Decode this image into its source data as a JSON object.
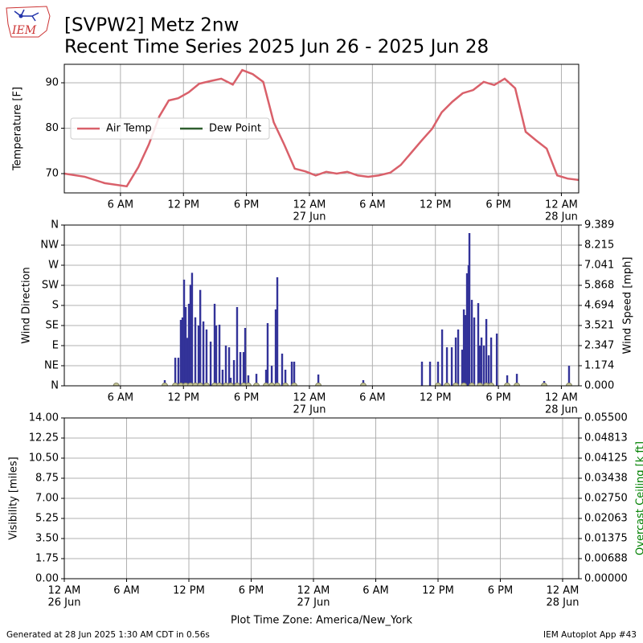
{
  "header": {
    "title": "[SVPW2] Metz 2nw",
    "subtitle": "Recent Time Series 2025 Jun 26 - 2025 Jun 28",
    "logo_text": "IEM"
  },
  "footer": {
    "left": "Generated at 28 Jun 2025 1:30 AM CDT in 0.56s",
    "right": "IEM Autoplot App #43"
  },
  "chart_data": [
    {
      "type": "line",
      "ylabel": "Temperature [F]",
      "grid": true,
      "legend": "center left",
      "xlim": [
        0.65,
        49.65
      ],
      "ylim": [
        65.75,
        94.07
      ],
      "yticks": [
        70,
        80,
        90
      ],
      "xticks": [
        {
          "value": 6,
          "label": "6 AM"
        },
        {
          "value": 12,
          "label": "12 PM"
        },
        {
          "value": 18,
          "label": "6 PM"
        },
        {
          "value": 24,
          "label": "12 AM",
          "sublabel": "27 Jun"
        },
        {
          "value": 30,
          "label": "6 AM"
        },
        {
          "value": 36,
          "label": "12 PM"
        },
        {
          "value": 42,
          "label": "6 PM"
        },
        {
          "value": 48,
          "label": "12 AM",
          "sublabel": "28 Jun"
        }
      ],
      "series": [
        {
          "name": "Air Temp",
          "type": "line",
          "color": "#d9606a",
          "x": [
            0.65,
            2.6,
            4.5,
            6.6,
            7.7,
            8.7,
            9.7,
            10.6,
            11.5,
            12.5,
            13.5,
            14.6,
            15.6,
            16.7,
            17.6,
            18.6,
            19.6,
            20.6,
            21.6,
            22.6,
            23.6,
            24.6,
            25.6,
            26.6,
            27.6,
            28.6,
            29.6,
            30.6,
            31.7,
            32.7,
            33.7,
            34.7,
            35.7,
            36.6,
            37.6,
            38.6,
            39.6,
            40.6,
            41.6,
            42.6,
            43.6,
            44.6,
            45.6,
            46.6,
            47.6,
            48.6,
            49.65
          ],
          "values": [
            70,
            69.3,
            67.9,
            67.2,
            71.4,
            76.4,
            82.6,
            86.1,
            86.6,
            87.9,
            89.8,
            90.4,
            90.9,
            89.6,
            92.8,
            91.9,
            90.2,
            81.3,
            76.4,
            71.1,
            70.5,
            69.6,
            70.4,
            70,
            70.4,
            69.6,
            69.3,
            69.6,
            70.2,
            71.9,
            74.6,
            77.3,
            79.9,
            83.5,
            85.8,
            87.7,
            88.4,
            90.2,
            89.5,
            90.9,
            88.8,
            79.2,
            77.3,
            75.5,
            69.6,
            68.9,
            68.6
          ]
        },
        {
          "name": "Dew Point",
          "type": "line",
          "color": "#2e5e2e",
          "x": [],
          "values": []
        }
      ]
    },
    {
      "type": "bar",
      "ylabel": "Wind Direction",
      "y2label": "Wind Speed [mph]",
      "grid": true,
      "xlim": [
        0.65,
        49.65
      ],
      "ylim": [
        0,
        360
      ],
      "yticks": [
        {
          "value": 0,
          "label": "N"
        },
        {
          "value": 45,
          "label": "NE"
        },
        {
          "value": 90,
          "label": "E"
        },
        {
          "value": 135,
          "label": "SE"
        },
        {
          "value": 180,
          "label": "S"
        },
        {
          "value": 225,
          "label": "SW"
        },
        {
          "value": 270,
          "label": "W"
        },
        {
          "value": 315,
          "label": "NW"
        },
        {
          "value": 360,
          "label": "N"
        }
      ],
      "y2lim": [
        0,
        9.389
      ],
      "y2ticks": [
        {
          "value": 0,
          "label": "0.000"
        },
        {
          "value": 1.174,
          "label": "1.174"
        },
        {
          "value": 2.347,
          "label": "2.347"
        },
        {
          "value": 3.521,
          "label": "3.521"
        },
        {
          "value": 4.694,
          "label": "4.694"
        },
        {
          "value": 5.868,
          "label": "5.868"
        },
        {
          "value": 7.041,
          "label": "7.041"
        },
        {
          "value": 8.215,
          "label": "8.215"
        },
        {
          "value": 9.389,
          "label": "9.389"
        }
      ],
      "xticks": [
        {
          "value": 6,
          "label": "6 AM"
        },
        {
          "value": 12,
          "label": "12 PM"
        },
        {
          "value": 18,
          "label": "6 PM"
        },
        {
          "value": 24,
          "label": "12 AM",
          "sublabel": "27 Jun"
        },
        {
          "value": 30,
          "label": "6 AM"
        },
        {
          "value": 36,
          "label": "12 PM"
        },
        {
          "value": 42,
          "label": "6 PM"
        },
        {
          "value": 48,
          "label": "12 AM",
          "sublabel": "28 Jun"
        }
      ],
      "series": [
        {
          "type": "bar",
          "axis": "y2",
          "color": "#333399",
          "x": [
            10.22,
            11.22,
            11.52,
            11.75,
            11.91,
            12.06,
            12.21,
            12.36,
            12.52,
            12.67,
            12.82,
            13.13,
            13.44,
            13.6,
            13.9,
            14.2,
            14.59,
            14.97,
            15.12,
            15.43,
            15.73,
            16.04,
            16.35,
            16.5,
            16.81,
            17.11,
            17.42,
            17.73,
            17.88,
            18.18,
            18.95,
            19.87,
            20.02,
            20.41,
            20.79,
            20.94,
            21.4,
            21.71,
            22.32,
            22.55,
            24.85,
            29.13,
            34.72,
            35.49,
            36.25,
            36.64,
            37.1,
            37.56,
            37.94,
            38.17,
            38.55,
            38.71,
            38.86,
            39.01,
            39.16,
            39.24,
            39.47,
            39.7,
            40.08,
            40.24,
            40.39,
            40.62,
            40.85,
            41.08,
            41.31,
            41.85,
            42.84,
            43.76,
            46.36,
            48.73
          ],
          "values": [
            0.33,
            1.64,
            1.64,
            3.85,
            3.99,
            6.2,
            4.6,
            2.8,
            4.79,
            5.9,
            6.6,
            4.0,
            3.52,
            5.6,
            3.76,
            3.29,
            2.58,
            4.79,
            3.52,
            3.57,
            0.94,
            2.35,
            2.25,
            0.47,
            1.5,
            4.6,
            1.97,
            1.97,
            3.38,
            0.61,
            0.7,
            0.94,
            3.66,
            1.17,
            4.46,
            6.34,
            1.88,
            0.94,
            1.41,
            1.41,
            0.66,
            0.33,
            1.41,
            1.41,
            1.41,
            3.29,
            2.25,
            2.25,
            2.82,
            3.29,
            2.11,
            4.46,
            4.13,
            6.57,
            7.04,
            8.92,
            5.02,
            3.99,
            4.83,
            2.35,
            2.82,
            2.35,
            3.9,
            1.78,
            2.82,
            3.05,
            0.61,
            0.7,
            0.28,
            1.17
          ]
        },
        {
          "type": "scatter",
          "color": "#c8c89a",
          "x": [
            5.6,
            10.22,
            11.22,
            11.75,
            12.21,
            12.67,
            13.13,
            13.6,
            14.2,
            14.97,
            15.43,
            16.04,
            16.5,
            17.11,
            17.73,
            18.18,
            18.95,
            19.87,
            20.41,
            20.94,
            21.71,
            22.55,
            24.85,
            29.13,
            36.25,
            37.1,
            37.94,
            38.71,
            39.47,
            40.24,
            40.85,
            41.31,
            42.84,
            43.76,
            46.36,
            48.73
          ],
          "values": [
            0,
            0,
            0,
            0,
            0,
            0,
            0,
            0,
            0,
            0,
            0,
            0,
            0,
            0,
            0,
            0,
            0,
            0,
            0,
            0,
            0,
            0,
            0,
            0,
            0,
            0,
            0,
            0,
            0,
            0,
            0,
            0,
            0,
            0,
            0,
            0
          ]
        }
      ]
    },
    {
      "type": "line",
      "ylabel": "Visibility [miles]",
      "y2label": "Overcast Ceiling [k ft]",
      "y2color": "#008000",
      "grid": true,
      "xlabel": "Plot Time Zone: America/New_York",
      "xlim": [
        0,
        49.55
      ],
      "ylim": [
        0,
        14
      ],
      "yticks": [
        {
          "value": 0,
          "label": "0.00"
        },
        1.75,
        {
          "value": 3.5,
          "label": "3.50"
        },
        5.25,
        {
          "value": 7,
          "label": "7.00"
        },
        8.75,
        {
          "value": 10.5,
          "label": "10.50"
        },
        12.25,
        {
          "value": 14,
          "label": "14.00"
        }
      ],
      "y2lim": [
        0,
        0.055
      ],
      "y2ticks": [
        {
          "value": 0,
          "label": "0.00000"
        },
        {
          "value": 0.006875,
          "label": "0.00688"
        },
        {
          "value": 0.01375,
          "label": "0.01375"
        },
        {
          "value": 0.020625,
          "label": "0.02063"
        },
        {
          "value": 0.0275,
          "label": "0.02750"
        },
        {
          "value": 0.034375,
          "label": "0.03438"
        },
        {
          "value": 0.04125,
          "label": "0.04125"
        },
        {
          "value": 0.048125,
          "label": "0.04813"
        },
        {
          "value": 0.055,
          "label": "0.05500"
        }
      ],
      "xticks": [
        {
          "value": 0,
          "label": "12 AM",
          "sublabel": "26 Jun"
        },
        {
          "value": 6,
          "label": "6 AM"
        },
        {
          "value": 12,
          "label": "12 PM"
        },
        {
          "value": 18,
          "label": "6 PM"
        },
        {
          "value": 24,
          "label": "12 AM",
          "sublabel": "27 Jun"
        },
        {
          "value": 30,
          "label": "6 AM"
        },
        {
          "value": 36,
          "label": "12 PM"
        },
        {
          "value": 42,
          "label": "6 PM"
        },
        {
          "value": 48,
          "label": "12 AM",
          "sublabel": "28 Jun"
        }
      ],
      "series": []
    }
  ]
}
